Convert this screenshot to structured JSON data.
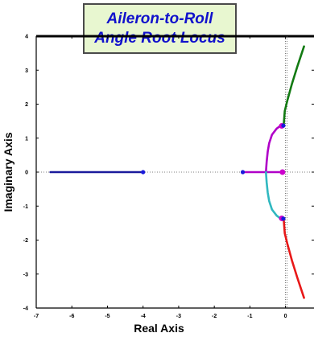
{
  "title": {
    "line1": "Aileron-to-Roll",
    "line2": "Angle Root Locus"
  },
  "chart_data": {
    "type": "scatter",
    "title": "Aileron-to-Roll Angle Root Locus",
    "xlabel": "Real Axis",
    "ylabel": "Imaginary Axis",
    "xlim": [
      -7,
      0.8
    ],
    "ylim": [
      -4,
      4
    ],
    "xticks": [
      -7,
      -6,
      -5,
      -4,
      -3,
      -2,
      -1,
      0
    ],
    "yticks": [
      -4,
      -3,
      -2,
      -1,
      0,
      1,
      2,
      3,
      4
    ],
    "grid": false,
    "colors": {
      "blue_branch": "#1a1a9c",
      "purple_branch": "#b000c8",
      "cyan_branch": "#30b8c0",
      "green_branch": "#127a12",
      "red_branch": "#e81818",
      "pole_marker": "#1a1adb",
      "zero_marker": "#cc00cc",
      "axis_lines": "#000000",
      "dotted_lines": "#555555"
    },
    "series": [
      {
        "points": [
          [
            -6.6,
            0
          ],
          [
            -4.0,
            0
          ]
        ],
        "color": "blue_branch"
      },
      {
        "points": [
          [
            -1.2,
            0
          ],
          [
            -0.05,
            0
          ]
        ],
        "color": "purple_branch"
      },
      {
        "points": [
          [
            -0.05,
            1.36
          ],
          [
            -0.12,
            1.38
          ],
          [
            -0.25,
            1.28
          ],
          [
            -0.38,
            1.1
          ],
          [
            -0.46,
            0.85
          ],
          [
            -0.5,
            0.6
          ],
          [
            -0.53,
            0.3
          ],
          [
            -0.55,
            0
          ]
        ],
        "color": "purple_branch"
      },
      {
        "points": [
          [
            -0.05,
            -1.36
          ],
          [
            -0.12,
            -1.38
          ],
          [
            -0.25,
            -1.28
          ],
          [
            -0.38,
            -1.1
          ],
          [
            -0.46,
            -0.85
          ],
          [
            -0.5,
            -0.6
          ],
          [
            -0.53,
            -0.3
          ],
          [
            -0.55,
            0
          ]
        ],
        "color": "cyan_branch"
      },
      {
        "points": [
          [
            -0.05,
            1.4
          ],
          [
            -0.02,
            1.8
          ],
          [
            0.05,
            2.1
          ],
          [
            0.18,
            2.6
          ],
          [
            0.33,
            3.1
          ],
          [
            0.52,
            3.7
          ]
        ],
        "color": "green_branch"
      },
      {
        "points": [
          [
            -0.05,
            -1.4
          ],
          [
            -0.02,
            -1.8
          ],
          [
            0.05,
            -2.1
          ],
          [
            0.18,
            -2.6
          ],
          [
            0.33,
            -3.1
          ],
          [
            0.52,
            -3.7
          ]
        ],
        "color": "red_branch"
      }
    ],
    "poles": [
      [
        -4.0,
        0
      ],
      [
        -1.2,
        0
      ],
      [
        -0.06,
        1.37
      ],
      [
        -0.06,
        -1.37
      ]
    ],
    "zeros": [
      [
        -0.06,
        1.36
      ],
      [
        -0.06,
        -1.36
      ],
      [
        -0.04,
        0
      ]
    ]
  }
}
